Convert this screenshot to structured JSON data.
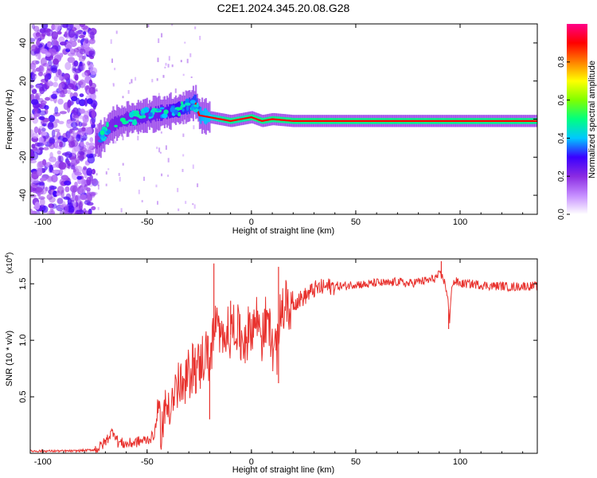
{
  "title": "C2E1.2024.345.20.08.G28",
  "chart_data": [
    {
      "type": "heatmap",
      "xlabel": "Height of straight line (km)",
      "ylabel": "Frequency (Hz)",
      "xlim": [
        -106,
        137
      ],
      "ylim": [
        -50,
        50
      ],
      "xticks": [
        -100,
        -50,
        0,
        50,
        100
      ],
      "yticks": [
        -40,
        -20,
        0,
        20,
        40
      ],
      "xtick_labels": [
        "-100",
        "-50",
        "0",
        "50",
        "100"
      ],
      "ytick_labels": [
        "-40",
        "-20",
        "0",
        "20",
        "40"
      ],
      "colorbar": {
        "label": "Normalized spectral amplitude",
        "range": [
          0,
          1
        ],
        "ticks": [
          0.0,
          0.2,
          0.4,
          0.6,
          0.8
        ],
        "tick_labels": [
          "0.0",
          "0.2",
          "0.4",
          "0.6",
          "0.8"
        ],
        "colors": [
          "#ffffff",
          "#c58cff",
          "#8a2be2",
          "#3a00ff",
          "#00c8ff",
          "#00ff80",
          "#80ff00",
          "#ffff00",
          "#ff8000",
          "#ff0000",
          "#ff0088"
        ]
      },
      "ridge": {
        "x": [
          -75,
          -72,
          -70,
          -68,
          -65,
          -60,
          -55,
          -50,
          -45,
          -40,
          -35,
          -30,
          -27,
          -25,
          -20,
          -15,
          -10,
          -5,
          0,
          5,
          10,
          20,
          40,
          60,
          80,
          100,
          120,
          137
        ],
        "y": [
          -12,
          -10,
          -7,
          -4,
          -2,
          0,
          1,
          2,
          3,
          4,
          5,
          7,
          9,
          2,
          1,
          0,
          -1,
          0,
          1,
          -1,
          0,
          -1,
          -1,
          -1,
          -1,
          -1,
          -1,
          -1
        ],
        "amplitude": [
          0.35,
          0.38,
          0.4,
          0.4,
          0.42,
          0.42,
          0.45,
          0.45,
          0.45,
          0.5,
          0.55,
          0.6,
          0.6,
          0.7,
          0.75,
          0.85,
          0.9,
          0.85,
          0.9,
          0.9,
          0.9,
          0.9,
          0.9,
          0.9,
          0.9,
          0.9,
          0.9,
          0.9
        ]
      }
    },
    {
      "type": "line",
      "xlabel": "Height of straight line (km)",
      "ylabel": "SNR (10 * v/v)",
      "scale_label": "(x10",
      "scale_exponent": "4",
      "scale_suffix": ")",
      "color": "#e8322e",
      "xlim": [
        -106,
        137
      ],
      "ylim": [
        0,
        1.72
      ],
      "xticks": [
        -100,
        -50,
        0,
        50,
        100
      ],
      "xtick_labels": [
        "-100",
        "-50",
        "0",
        "50",
        "100"
      ],
      "yticks": [
        0.5,
        1.0,
        1.5
      ],
      "ytick_labels": [
        "0.5",
        "1.0",
        "1.5"
      ],
      "x": [
        -106,
        -95,
        -85,
        -76,
        -73,
        -70,
        -68,
        -66,
        -64,
        -60,
        -55,
        -50,
        -47,
        -45,
        -43,
        -40,
        -37,
        -35,
        -32,
        -30,
        -28,
        -25,
        -22,
        -20,
        -18,
        -17,
        -15,
        -13,
        -10,
        -8,
        -5,
        -3,
        0,
        3,
        5,
        8,
        10,
        12,
        14,
        16,
        18,
        20,
        22,
        25,
        28,
        30,
        35,
        40,
        45,
        50,
        55,
        60,
        65,
        70,
        75,
        80,
        85,
        88,
        90,
        92,
        94,
        95,
        96,
        98,
        100,
        105,
        110,
        115,
        120,
        125,
        130,
        137
      ],
      "y": [
        0.02,
        0.02,
        0.02,
        0.03,
        0.05,
        0.1,
        0.16,
        0.2,
        0.1,
        0.08,
        0.1,
        0.12,
        0.15,
        0.3,
        0.25,
        0.45,
        0.5,
        0.6,
        0.55,
        0.7,
        0.8,
        0.75,
        0.9,
        0.85,
        1.0,
        1.2,
        0.95,
        1.1,
        1.05,
        1.15,
        1.0,
        1.05,
        1.1,
        1.2,
        1.05,
        1.2,
        0.95,
        0.9,
        1.25,
        1.3,
        1.28,
        1.33,
        1.35,
        1.38,
        1.42,
        1.45,
        1.47,
        1.48,
        1.48,
        1.5,
        1.49,
        1.51,
        1.5,
        1.52,
        1.5,
        1.52,
        1.53,
        1.55,
        1.58,
        1.55,
        1.4,
        1.15,
        1.5,
        1.52,
        1.5,
        1.5,
        1.49,
        1.48,
        1.48,
        1.47,
        1.48,
        1.48
      ],
      "spikes": [
        {
          "x": -18,
          "y": 1.68
        },
        {
          "x": 13,
          "y": 1.65
        },
        {
          "x": -10,
          "y": 1.35
        },
        {
          "x": -20,
          "y": 0.3
        },
        {
          "x": 13,
          "y": 0.62
        },
        {
          "x": 94.5,
          "y": 1.1
        },
        {
          "x": 91,
          "y": 1.7
        }
      ]
    }
  ]
}
